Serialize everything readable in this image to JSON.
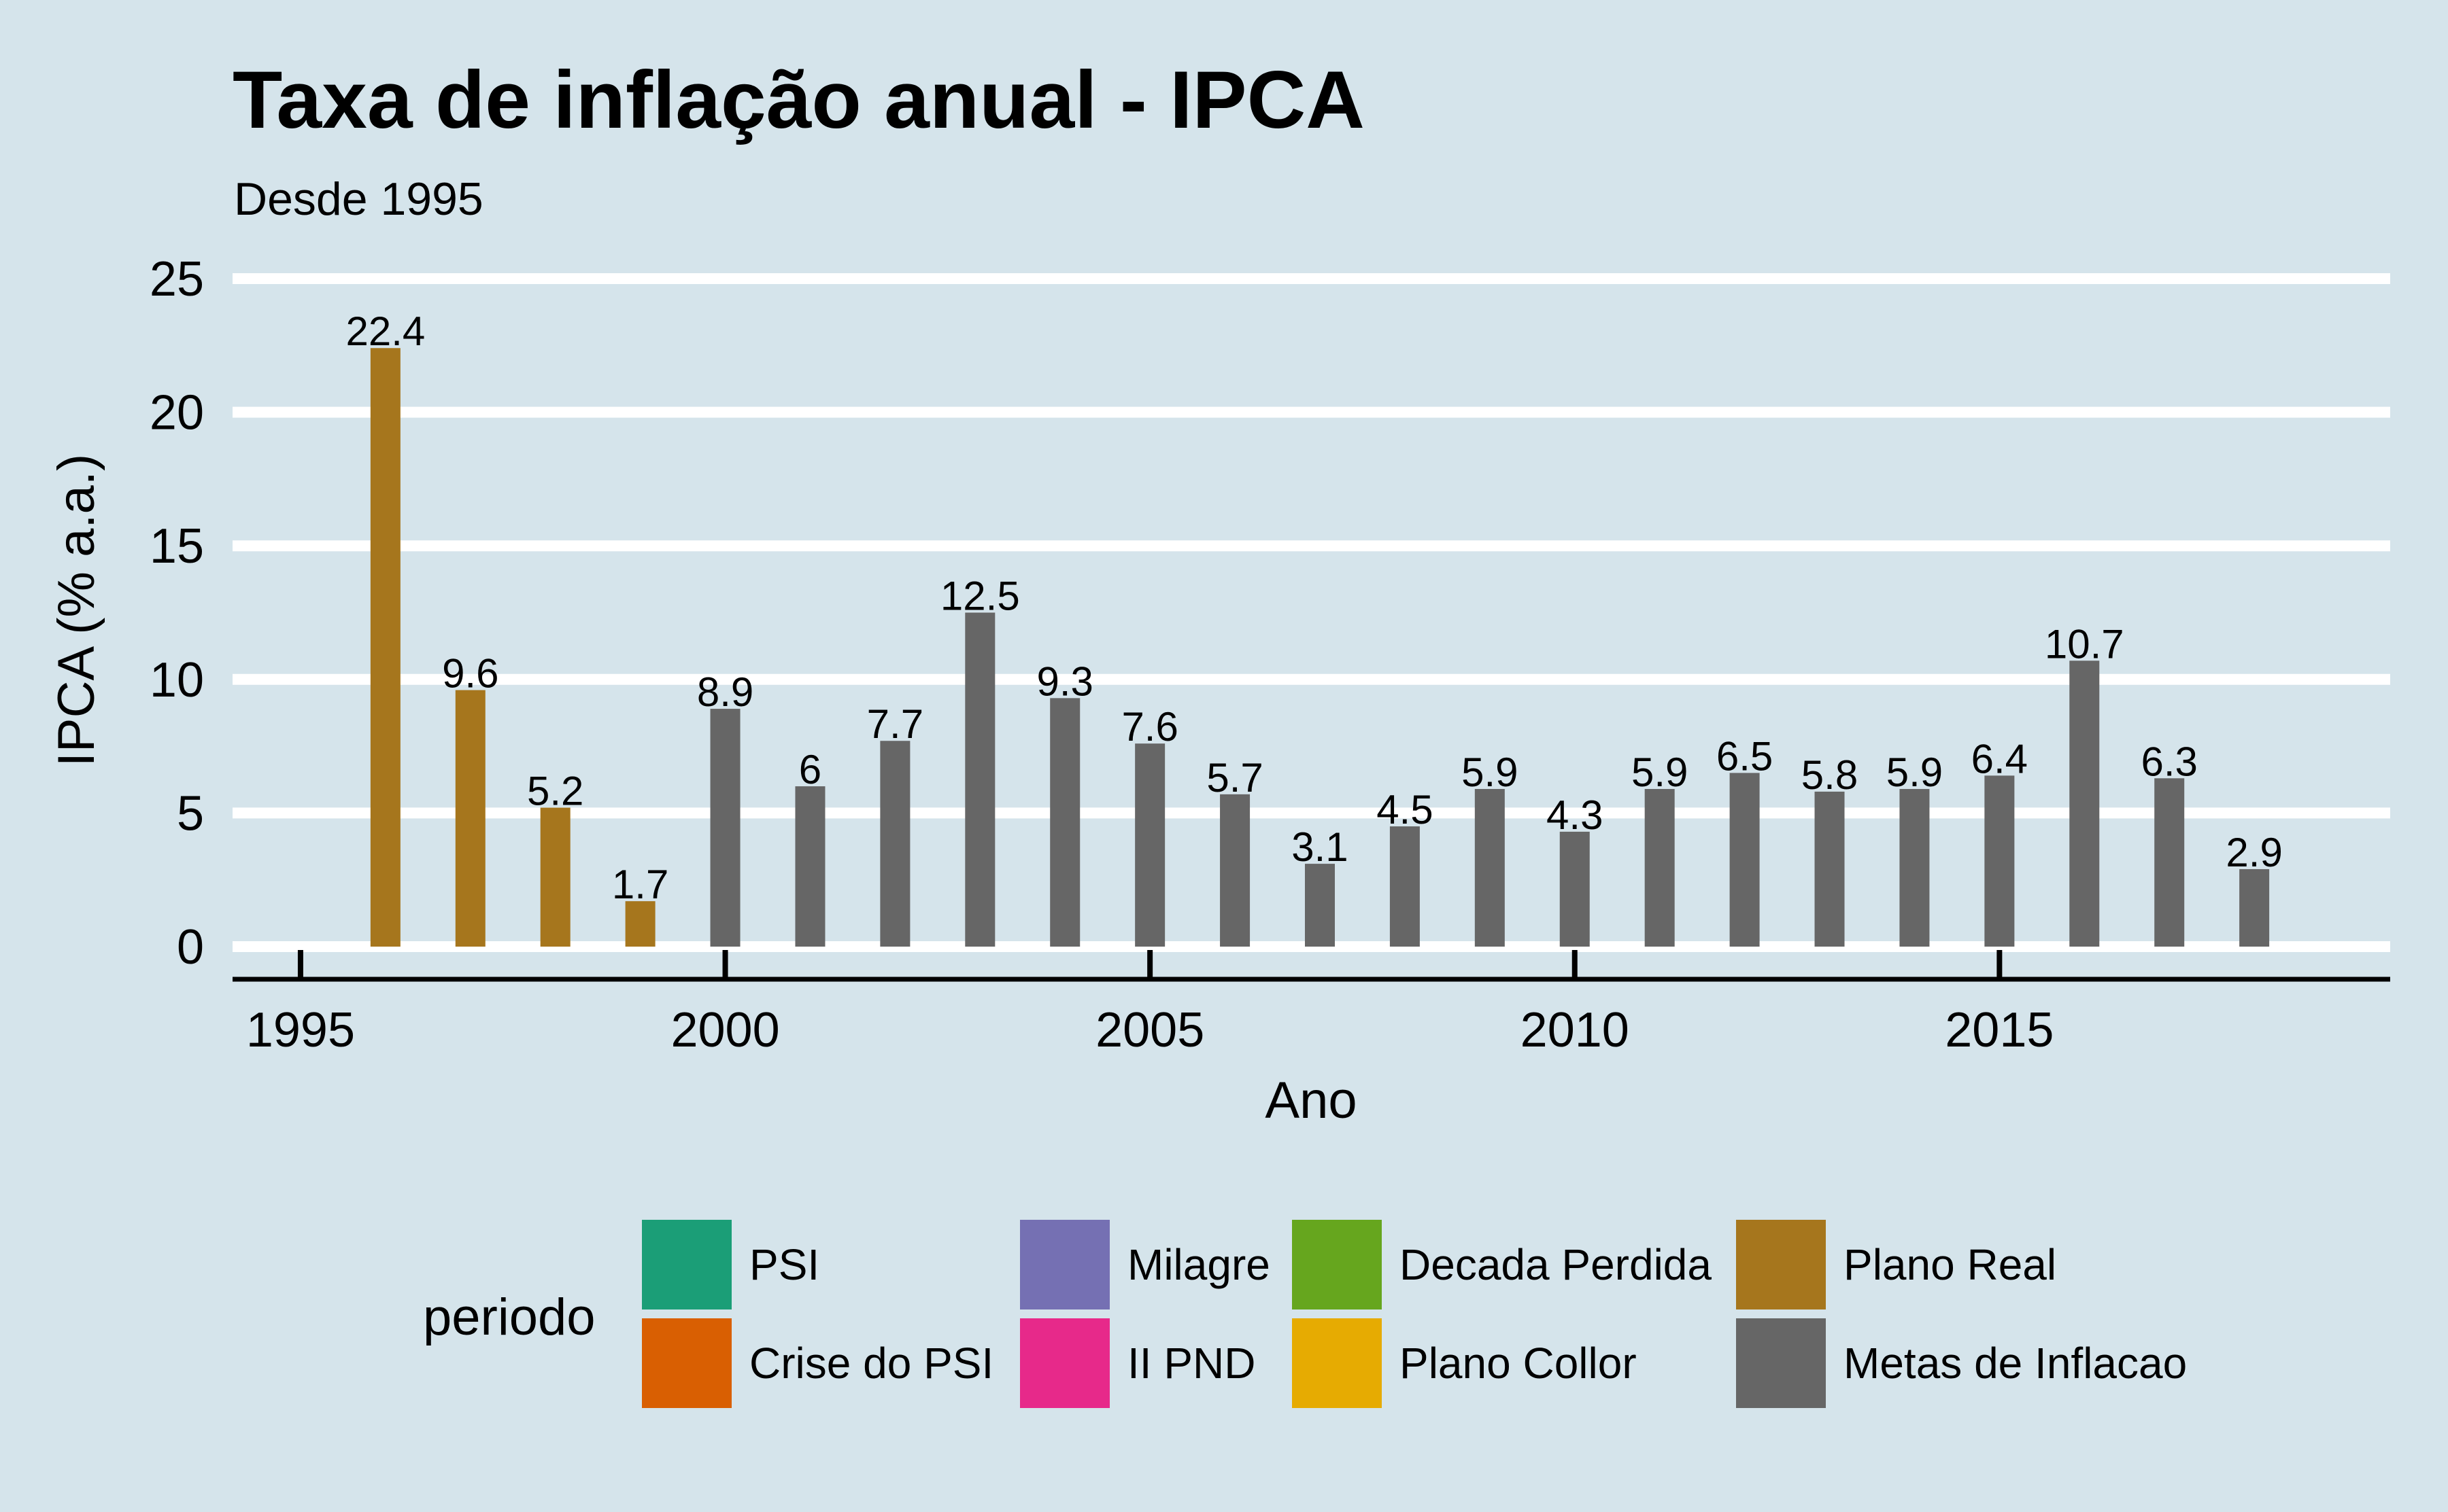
{
  "chart_data": {
    "type": "bar",
    "title": "Taxa de inflação anual - IPCA",
    "subtitle": "Desde 1995",
    "xlabel": "Ano",
    "ylabel": "IPCA (% a.a.)",
    "xlim": [
      1994.2,
      2019.6
    ],
    "ylim": [
      0,
      25
    ],
    "x_ticks": [
      "1995",
      "2000",
      "2005",
      "2010",
      "2015"
    ],
    "y_ticks": [
      "0",
      "5",
      "10",
      "15",
      "20",
      "25"
    ],
    "grid": "horizontal",
    "legend_position": "bottom",
    "legend_title": "periodo",
    "legend": [
      {
        "name": "PSI",
        "color": "#1b9e77"
      },
      {
        "name": "Crise do PSI",
        "color": "#d95f02"
      },
      {
        "name": "Milagre",
        "color": "#7570b3"
      },
      {
        "name": "II PND",
        "color": "#e7298a"
      },
      {
        "name": "Decada Perdida",
        "color": "#66a61e"
      },
      {
        "name": "Plano Collor",
        "color": "#e6ab02"
      },
      {
        "name": "Plano Real",
        "color": "#a6761d"
      },
      {
        "name": "Metas de Inflacao",
        "color": "#666666"
      }
    ],
    "bars": [
      {
        "year": 1996,
        "value": 22.4,
        "label": "22.4",
        "period": "Plano Real"
      },
      {
        "year": 1997,
        "value": 9.6,
        "label": "9.6",
        "period": "Plano Real"
      },
      {
        "year": 1998,
        "value": 5.2,
        "label": "5.2",
        "period": "Plano Real"
      },
      {
        "year": 1999,
        "value": 1.7,
        "label": "1.7",
        "period": "Plano Real"
      },
      {
        "year": 2000,
        "value": 8.9,
        "label": "8.9",
        "period": "Metas de Inflacao"
      },
      {
        "year": 2001,
        "value": 6.0,
        "label": "6",
        "period": "Metas de Inflacao"
      },
      {
        "year": 2002,
        "value": 7.7,
        "label": "7.7",
        "period": "Metas de Inflacao"
      },
      {
        "year": 2003,
        "value": 12.5,
        "label": "12.5",
        "period": "Metas de Inflacao"
      },
      {
        "year": 2004,
        "value": 9.3,
        "label": "9.3",
        "period": "Metas de Inflacao"
      },
      {
        "year": 2005,
        "value": 7.6,
        "label": "7.6",
        "period": "Metas de Inflacao"
      },
      {
        "year": 2006,
        "value": 5.7,
        "label": "5.7",
        "period": "Metas de Inflacao"
      },
      {
        "year": 2007,
        "value": 3.1,
        "label": "3.1",
        "period": "Metas de Inflacao"
      },
      {
        "year": 2008,
        "value": 4.5,
        "label": "4.5",
        "period": "Metas de Inflacao"
      },
      {
        "year": 2009,
        "value": 5.9,
        "label": "5.9",
        "period": "Metas de Inflacao"
      },
      {
        "year": 2010,
        "value": 4.3,
        "label": "4.3",
        "period": "Metas de Inflacao"
      },
      {
        "year": 2011,
        "value": 5.9,
        "label": "5.9",
        "period": "Metas de Inflacao"
      },
      {
        "year": 2012,
        "value": 6.5,
        "label": "6.5",
        "period": "Metas de Inflacao"
      },
      {
        "year": 2013,
        "value": 5.8,
        "label": "5.8",
        "period": "Metas de Inflacao"
      },
      {
        "year": 2014,
        "value": 5.9,
        "label": "5.9",
        "period": "Metas de Inflacao"
      },
      {
        "year": 2015,
        "value": 6.4,
        "label": "6.4",
        "period": "Metas de Inflacao"
      },
      {
        "year": 2016,
        "value": 10.7,
        "label": "10.7",
        "period": "Metas de Inflacao"
      },
      {
        "year": 2017,
        "value": 6.3,
        "label": "6.3",
        "period": "Metas de Inflacao"
      },
      {
        "year": 2018,
        "value": 2.9,
        "label": "2.9",
        "period": "Metas de Inflacao"
      }
    ]
  }
}
